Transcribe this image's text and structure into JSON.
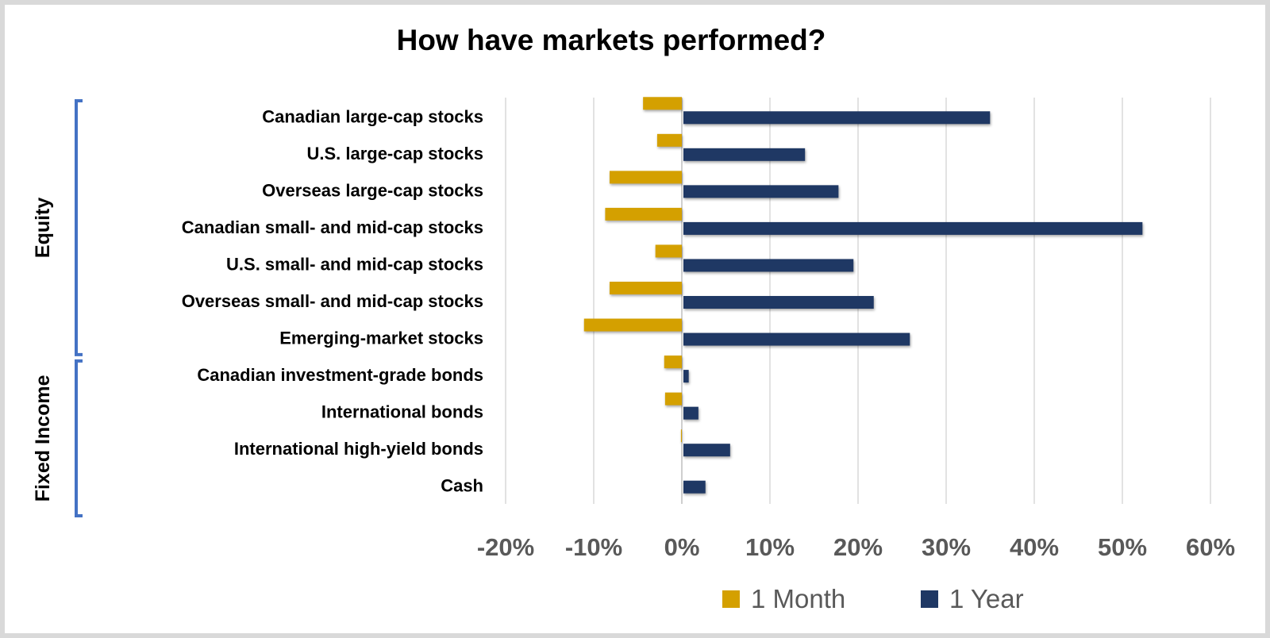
{
  "chart_data": {
    "type": "bar",
    "orientation": "horizontal",
    "title": "How have markets performed?",
    "categories": [
      "Canadian large-cap stocks",
      "U.S. large-cap stocks",
      "Overseas large-cap stocks",
      "Canadian small- and mid-cap stocks",
      "U.S. small- and mid-cap stocks",
      "Overseas small- and mid-cap stocks",
      "Emerging-market stocks",
      "Canadian investment-grade bonds",
      "International bonds",
      "International high-yield bonds",
      "Cash"
    ],
    "groups": [
      {
        "label": "Equity",
        "categories_count": 7
      },
      {
        "label": "Fixed Income",
        "categories_count": 4
      }
    ],
    "series": [
      {
        "name": "1 Month",
        "color": "#d4a000",
        "values": [
          -4.4,
          -2.8,
          -8.2,
          -8.7,
          -3.0,
          -8.2,
          -11.1,
          -2.0,
          -1.9,
          -0.1,
          0.0
        ]
      },
      {
        "name": "1 Year",
        "color": "#1f3864",
        "values": [
          34.8,
          13.8,
          17.6,
          52.1,
          19.3,
          21.6,
          25.7,
          0.6,
          1.7,
          5.3,
          2.5
        ]
      }
    ],
    "xlim": [
      -20,
      60
    ],
    "xticks": [
      "-20%",
      "-10%",
      "0%",
      "10%",
      "20%",
      "30%",
      "40%",
      "50%",
      "60%"
    ],
    "xtick_values": [
      -20,
      -10,
      0,
      10,
      20,
      30,
      40,
      50,
      60
    ],
    "units": "%",
    "grid": "vertical",
    "legend": "bottom",
    "bracket_color": "#4472c4"
  }
}
